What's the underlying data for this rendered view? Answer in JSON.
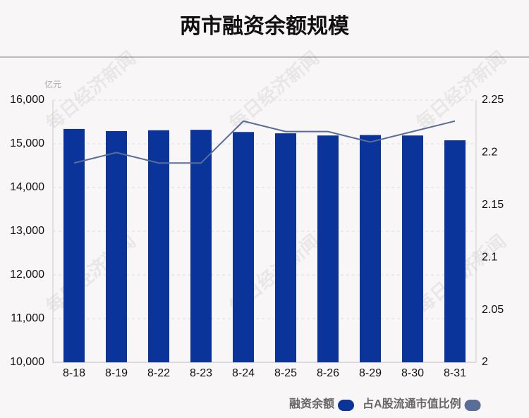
{
  "chart_data": {
    "type": "bar_line",
    "title": "两市融资余额规模",
    "y_unit": "亿元",
    "watermark": "每日经济新闻",
    "categories": [
      "8-18",
      "8-19",
      "8-22",
      "8-23",
      "8-24",
      "8-25",
      "8-26",
      "8-29",
      "8-30",
      "8-31"
    ],
    "series": [
      {
        "name": "融资余额",
        "color": "#0b349b",
        "type": "bar",
        "values": [
          15340,
          15290,
          15310,
          15320,
          15270,
          15240,
          15190,
          15200,
          15190,
          15080
        ]
      },
      {
        "name": "占A股流通市值比例",
        "color": "#5a6d98",
        "type": "line",
        "axis": "y2",
        "values": [
          2.19,
          2.2,
          2.19,
          2.19,
          2.23,
          2.22,
          2.22,
          2.21,
          2.22,
          2.23
        ]
      }
    ],
    "ylim": [
      10000,
      16000
    ],
    "yticks": [
      {
        "value": 10000,
        "label": "10,000"
      },
      {
        "value": 11000,
        "label": "11,000"
      },
      {
        "value": 12000,
        "label": "12,000"
      },
      {
        "value": 13000,
        "label": "13,000"
      },
      {
        "value": 14000,
        "label": "14,000"
      },
      {
        "value": 15000,
        "label": "15,000"
      },
      {
        "value": 16000,
        "label": "16,000"
      }
    ],
    "y2lim": [
      2,
      2.25
    ],
    "y2ticks": [
      2,
      2.05,
      2.1,
      2.15,
      2.2,
      2.25
    ],
    "grid": true
  }
}
